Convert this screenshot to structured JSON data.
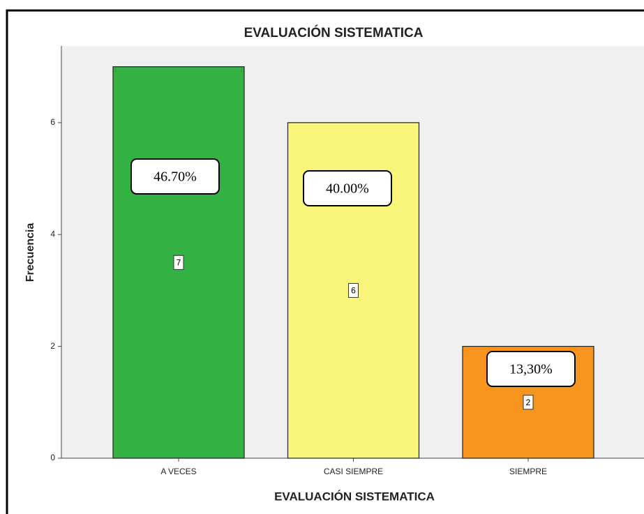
{
  "chart_data": {
    "type": "bar",
    "title": "EVALUACIÓN SISTEMATICA",
    "x_label": "EVALUACIÓN SISTEMATICA",
    "y_label": "Frecuencia",
    "categories": [
      "A VECES",
      "CASI SIEMPRE",
      "SIEMPRE"
    ],
    "values": [
      7,
      6,
      2
    ],
    "colors": [
      "#33b143",
      "#f8f57a",
      "#f7941d"
    ],
    "annotations": [
      "46.70%",
      "40.00%",
      "13,30%"
    ],
    "ylim": [
      0,
      7.37
    ],
    "yticks": [
      0,
      2,
      4,
      6
    ]
  }
}
